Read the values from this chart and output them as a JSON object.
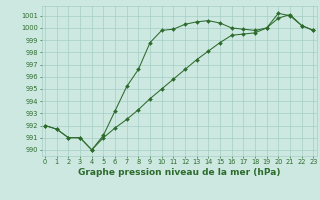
{
  "series1_x": [
    0,
    1,
    2,
    3,
    4,
    5,
    6,
    7,
    8,
    9,
    10,
    11,
    12,
    13,
    14,
    15,
    16,
    17,
    18,
    19,
    20,
    21,
    22,
    23
  ],
  "series1_y": [
    992.0,
    991.7,
    991.0,
    991.0,
    990.0,
    991.2,
    993.2,
    995.2,
    996.6,
    998.8,
    999.8,
    999.9,
    1000.3,
    1000.5,
    1000.6,
    1000.4,
    1000.0,
    999.9,
    999.8,
    1000.0,
    1001.2,
    1001.0,
    1000.2,
    999.8
  ],
  "series2_x": [
    0,
    1,
    2,
    3,
    4,
    5,
    6,
    7,
    8,
    9,
    10,
    11,
    12,
    13,
    14,
    15,
    16,
    17,
    18,
    19,
    20,
    21,
    22,
    23
  ],
  "series2_y": [
    992.0,
    991.7,
    991.0,
    991.0,
    990.0,
    991.0,
    991.8,
    992.5,
    993.3,
    994.2,
    995.0,
    995.8,
    996.6,
    997.4,
    998.1,
    998.8,
    999.4,
    999.5,
    999.6,
    1000.0,
    1000.8,
    1001.1,
    1000.2,
    999.8
  ],
  "line_color": "#2d6b2d",
  "bg_color": "#cce8e0",
  "grid_color": "#9dc8be",
  "xlabel": "Graphe pression niveau de la mer (hPa)",
  "ylim": [
    989.5,
    1001.8
  ],
  "xlim": [
    -0.3,
    23.3
  ],
  "yticks": [
    990,
    991,
    992,
    993,
    994,
    995,
    996,
    997,
    998,
    999,
    1000,
    1001
  ],
  "xticks": [
    0,
    1,
    2,
    3,
    4,
    5,
    6,
    7,
    8,
    9,
    10,
    11,
    12,
    13,
    14,
    15,
    16,
    17,
    18,
    19,
    20,
    21,
    22,
    23
  ],
  "tick_fontsize": 4.8,
  "xlabel_fontsize": 6.5,
  "marker_size": 2.0,
  "line_width": 0.75
}
